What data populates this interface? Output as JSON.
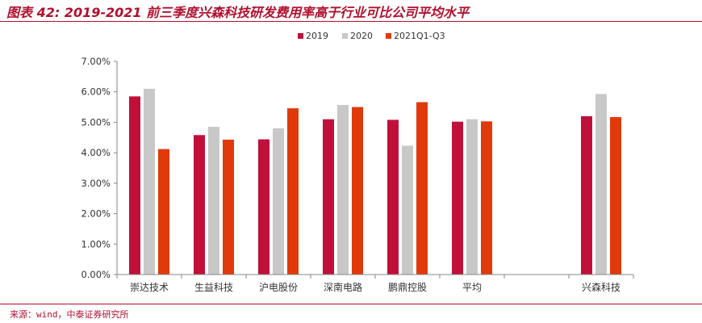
{
  "header": {
    "title": "图表 42:    2019-2021 前三季度兴森科技研发费用率高于行业可比公司平均水平"
  },
  "footer": {
    "source": "来源：wind，中泰证券研究所"
  },
  "colors": {
    "accent": "#b0102e",
    "s2019": "#c0103a",
    "s2020": "#c8c8c8",
    "s2021": "#e03a0c",
    "axis": "#888888"
  },
  "chart_data": {
    "type": "bar",
    "categories": [
      "崇达技术",
      "生益科技",
      "沪电股份",
      "深南电路",
      "鹏鼎控股",
      "平均",
      "",
      "兴森科技"
    ],
    "series": [
      {
        "name": "2019",
        "values": [
          5.85,
          4.58,
          4.44,
          5.1,
          5.08,
          5.02,
          null,
          5.2
        ]
      },
      {
        "name": "2020",
        "values": [
          6.1,
          4.85,
          4.8,
          5.57,
          4.23,
          5.1,
          null,
          5.93
        ]
      },
      {
        "name": "2021Q1-Q3",
        "values": [
          4.12,
          4.43,
          5.46,
          5.5,
          5.66,
          5.03,
          null,
          5.17
        ]
      }
    ],
    "ylim": [
      0,
      7
    ],
    "yticks": [
      "0.00%",
      "1.00%",
      "2.00%",
      "3.00%",
      "4.00%",
      "5.00%",
      "6.00%",
      "7.00%"
    ],
    "legend_position": "top-center",
    "grid": false
  }
}
